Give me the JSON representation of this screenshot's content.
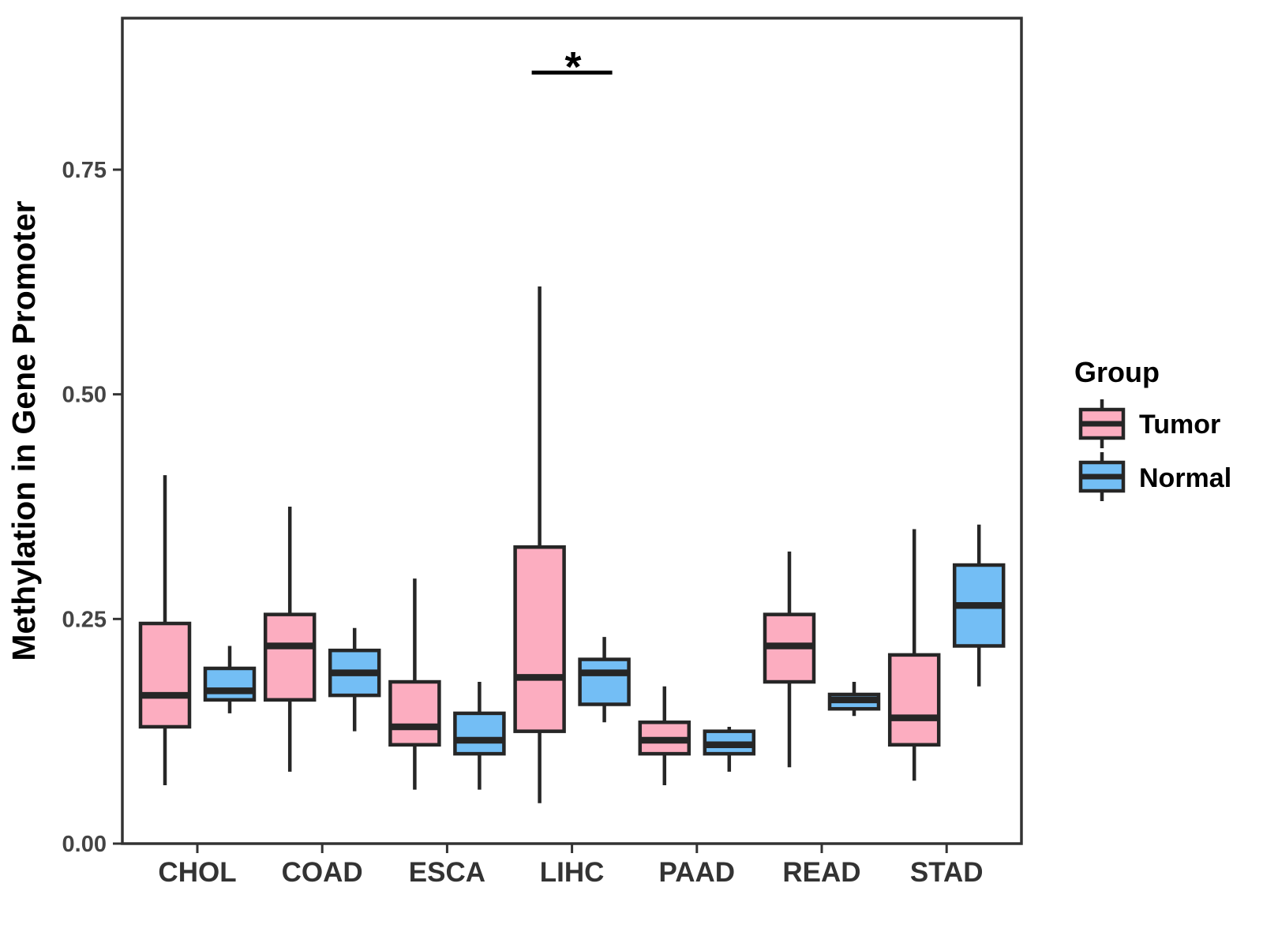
{
  "figure": {
    "background": "#FFFFFF"
  },
  "y_axis": {
    "title": "Methylation in Gene Promoter",
    "tick_labels": [
      "0.00",
      "0.25",
      "0.50",
      "0.75"
    ],
    "tick_values": [
      0,
      0.25,
      0.5,
      0.75
    ]
  },
  "x_axis": {
    "categories": [
      "CHOL",
      "COAD",
      "ESCA",
      "LIHC",
      "PAAD",
      "READ",
      "STAD"
    ]
  },
  "legend": {
    "title": "Group",
    "items": [
      {
        "label": "Tumor",
        "color": "#FCADC0"
      },
      {
        "label": "Normal",
        "color": "#73BEF5"
      }
    ]
  },
  "colors": {
    "box_stroke": "#262626",
    "panel_border": "#333333",
    "tick_mark": "#333333",
    "significance": "#000000"
  },
  "chart_data": {
    "type": "boxplot",
    "title": "",
    "xlabel": "",
    "ylabel": "Methylation in Gene Promoter",
    "ylim": [
      0,
      0.92
    ],
    "yticks": [
      0,
      0.25,
      0.5,
      0.75
    ],
    "ytick_labels": [
      "0.00",
      "0.25",
      "0.50",
      "0.75"
    ],
    "grid": "off",
    "legend_position": "right",
    "categories": [
      "CHOL",
      "COAD",
      "ESCA",
      "LIHC",
      "PAAD",
      "READ",
      "STAD"
    ],
    "series": [
      {
        "name": "Tumor",
        "color": "#FCADC0",
        "boxes": [
          {
            "category": "CHOL",
            "whisker_low": 0.065,
            "q1": 0.13,
            "median": 0.165,
            "q3": 0.245,
            "whisker_high": 0.41
          },
          {
            "category": "COAD",
            "whisker_low": 0.08,
            "q1": 0.16,
            "median": 0.22,
            "q3": 0.255,
            "whisker_high": 0.375
          },
          {
            "category": "ESCA",
            "whisker_low": 0.06,
            "q1": 0.11,
            "median": 0.13,
            "q3": 0.18,
            "whisker_high": 0.295
          },
          {
            "category": "LIHC",
            "whisker_low": 0.045,
            "q1": 0.125,
            "median": 0.185,
            "q3": 0.33,
            "whisker_high": 0.62
          },
          {
            "category": "PAAD",
            "whisker_low": 0.065,
            "q1": 0.1,
            "median": 0.115,
            "q3": 0.135,
            "whisker_high": 0.175
          },
          {
            "category": "READ",
            "whisker_low": 0.085,
            "q1": 0.18,
            "median": 0.22,
            "q3": 0.255,
            "whisker_high": 0.325
          },
          {
            "category": "STAD",
            "whisker_low": 0.07,
            "q1": 0.11,
            "median": 0.14,
            "q3": 0.21,
            "whisker_high": 0.35
          }
        ]
      },
      {
        "name": "Normal",
        "color": "#73BEF5",
        "boxes": [
          {
            "category": "CHOL",
            "whisker_low": 0.145,
            "q1": 0.16,
            "median": 0.17,
            "q3": 0.195,
            "whisker_high": 0.22
          },
          {
            "category": "COAD",
            "whisker_low": 0.125,
            "q1": 0.165,
            "median": 0.19,
            "q3": 0.215,
            "whisker_high": 0.24
          },
          {
            "category": "ESCA",
            "whisker_low": 0.06,
            "q1": 0.1,
            "median": 0.115,
            "q3": 0.145,
            "whisker_high": 0.18
          },
          {
            "category": "LIHC",
            "whisker_low": 0.135,
            "q1": 0.155,
            "median": 0.19,
            "q3": 0.205,
            "whisker_high": 0.23
          },
          {
            "category": "PAAD",
            "whisker_low": 0.08,
            "q1": 0.1,
            "median": 0.11,
            "q3": 0.125,
            "whisker_high": 0.13
          },
          {
            "category": "READ",
            "whisker_low": 0.142,
            "q1": 0.15,
            "median": 0.16,
            "q3": 0.166,
            "whisker_high": 0.18
          },
          {
            "category": "STAD",
            "whisker_low": 0.175,
            "q1": 0.22,
            "median": 0.265,
            "q3": 0.31,
            "whisker_high": 0.355
          }
        ]
      }
    ],
    "significance": [
      {
        "category": "LIHC",
        "label": "*",
        "y": 0.86
      }
    ]
  }
}
